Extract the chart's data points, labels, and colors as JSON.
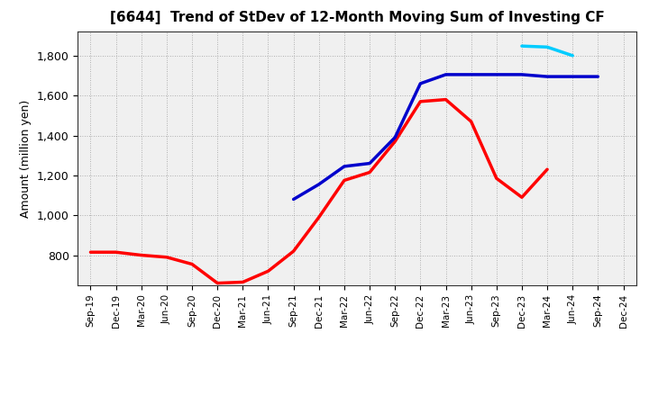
{
  "title": "[6644]  Trend of StDev of 12-Month Moving Sum of Investing CF",
  "ylabel": "Amount (million yen)",
  "background_color": "#ffffff",
  "grid_color": "#999999",
  "plot_bg_color": "#f0f0f0",
  "ylim": [
    650,
    1920
  ],
  "yticks": [
    800,
    1000,
    1200,
    1400,
    1600,
    1800
  ],
  "x_labels": [
    "Sep-19",
    "Dec-19",
    "Mar-20",
    "Jun-20",
    "Sep-20",
    "Dec-20",
    "Mar-21",
    "Jun-21",
    "Sep-21",
    "Dec-21",
    "Mar-22",
    "Jun-22",
    "Sep-22",
    "Dec-22",
    "Mar-23",
    "Jun-23",
    "Sep-23",
    "Dec-23",
    "Mar-24",
    "Jun-24",
    "Sep-24",
    "Dec-24"
  ],
  "series": {
    "3yr": {
      "color": "#ff0000",
      "linewidth": 2.5,
      "x": [
        0,
        1,
        2,
        3,
        4,
        5,
        6,
        7,
        8,
        9,
        10,
        11,
        12,
        13,
        14,
        15,
        16,
        17,
        18
      ],
      "y": [
        815,
        815,
        800,
        790,
        755,
        660,
        665,
        720,
        820,
        990,
        1175,
        1215,
        1370,
        1570,
        1580,
        1470,
        1185,
        1090,
        1230
      ]
    },
    "5yr": {
      "color": "#0000cc",
      "linewidth": 2.5,
      "x": [
        8,
        9,
        10,
        11,
        12,
        13,
        14,
        15,
        16,
        17,
        18,
        19,
        20
      ],
      "y": [
        1080,
        1155,
        1245,
        1260,
        1390,
        1660,
        1705,
        1705,
        1705,
        1705,
        1695,
        1695,
        1695
      ]
    },
    "7yr": {
      "color": "#00ccff",
      "linewidth": 2.5,
      "x": [
        17,
        18,
        19
      ],
      "y": [
        1848,
        1843,
        1800
      ]
    },
    "10yr": {
      "color": "#00aa00",
      "linewidth": 2.5,
      "x": [],
      "y": []
    }
  }
}
